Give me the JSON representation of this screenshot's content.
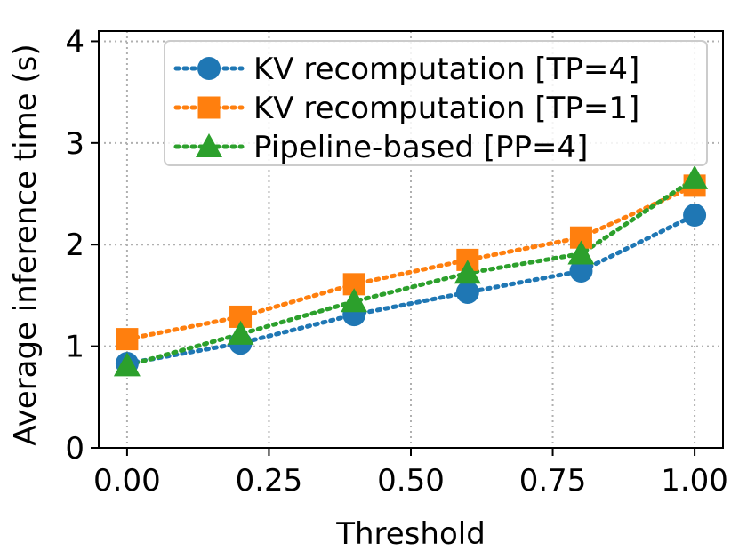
{
  "chart_data": {
    "type": "line",
    "title": "",
    "xlabel": "Threshold",
    "ylabel": "Average inference time (s)",
    "x": [
      0.0,
      0.2,
      0.4,
      0.6,
      0.8,
      1.0
    ],
    "xlim": [
      -0.05,
      1.05
    ],
    "ylim": [
      0,
      4.1
    ],
    "xticks": [
      0.0,
      0.25,
      0.5,
      0.75,
      1.0
    ],
    "xtick_labels": [
      "0.00",
      "0.25",
      "0.50",
      "0.75",
      "1.00"
    ],
    "yticks": [
      0,
      1,
      2,
      3,
      4
    ],
    "ytick_labels": [
      "0",
      "1",
      "2",
      "3",
      "4"
    ],
    "grid": true,
    "legend_position": "top-right",
    "series": [
      {
        "name": "KV recomputation [TP=4]",
        "color": "#1f77b4",
        "marker": "circle",
        "values": [
          0.83,
          1.03,
          1.31,
          1.53,
          1.74,
          2.29
        ]
      },
      {
        "name": "KV recomputation [TP=1]",
        "color": "#ff7f0e",
        "marker": "square",
        "values": [
          1.07,
          1.29,
          1.61,
          1.85,
          2.07,
          2.58
        ]
      },
      {
        "name": "Pipeline-based [PP=4]",
        "color": "#2ca02c",
        "marker": "triangle",
        "values": [
          0.81,
          1.12,
          1.44,
          1.72,
          1.91,
          2.65
        ]
      }
    ]
  }
}
